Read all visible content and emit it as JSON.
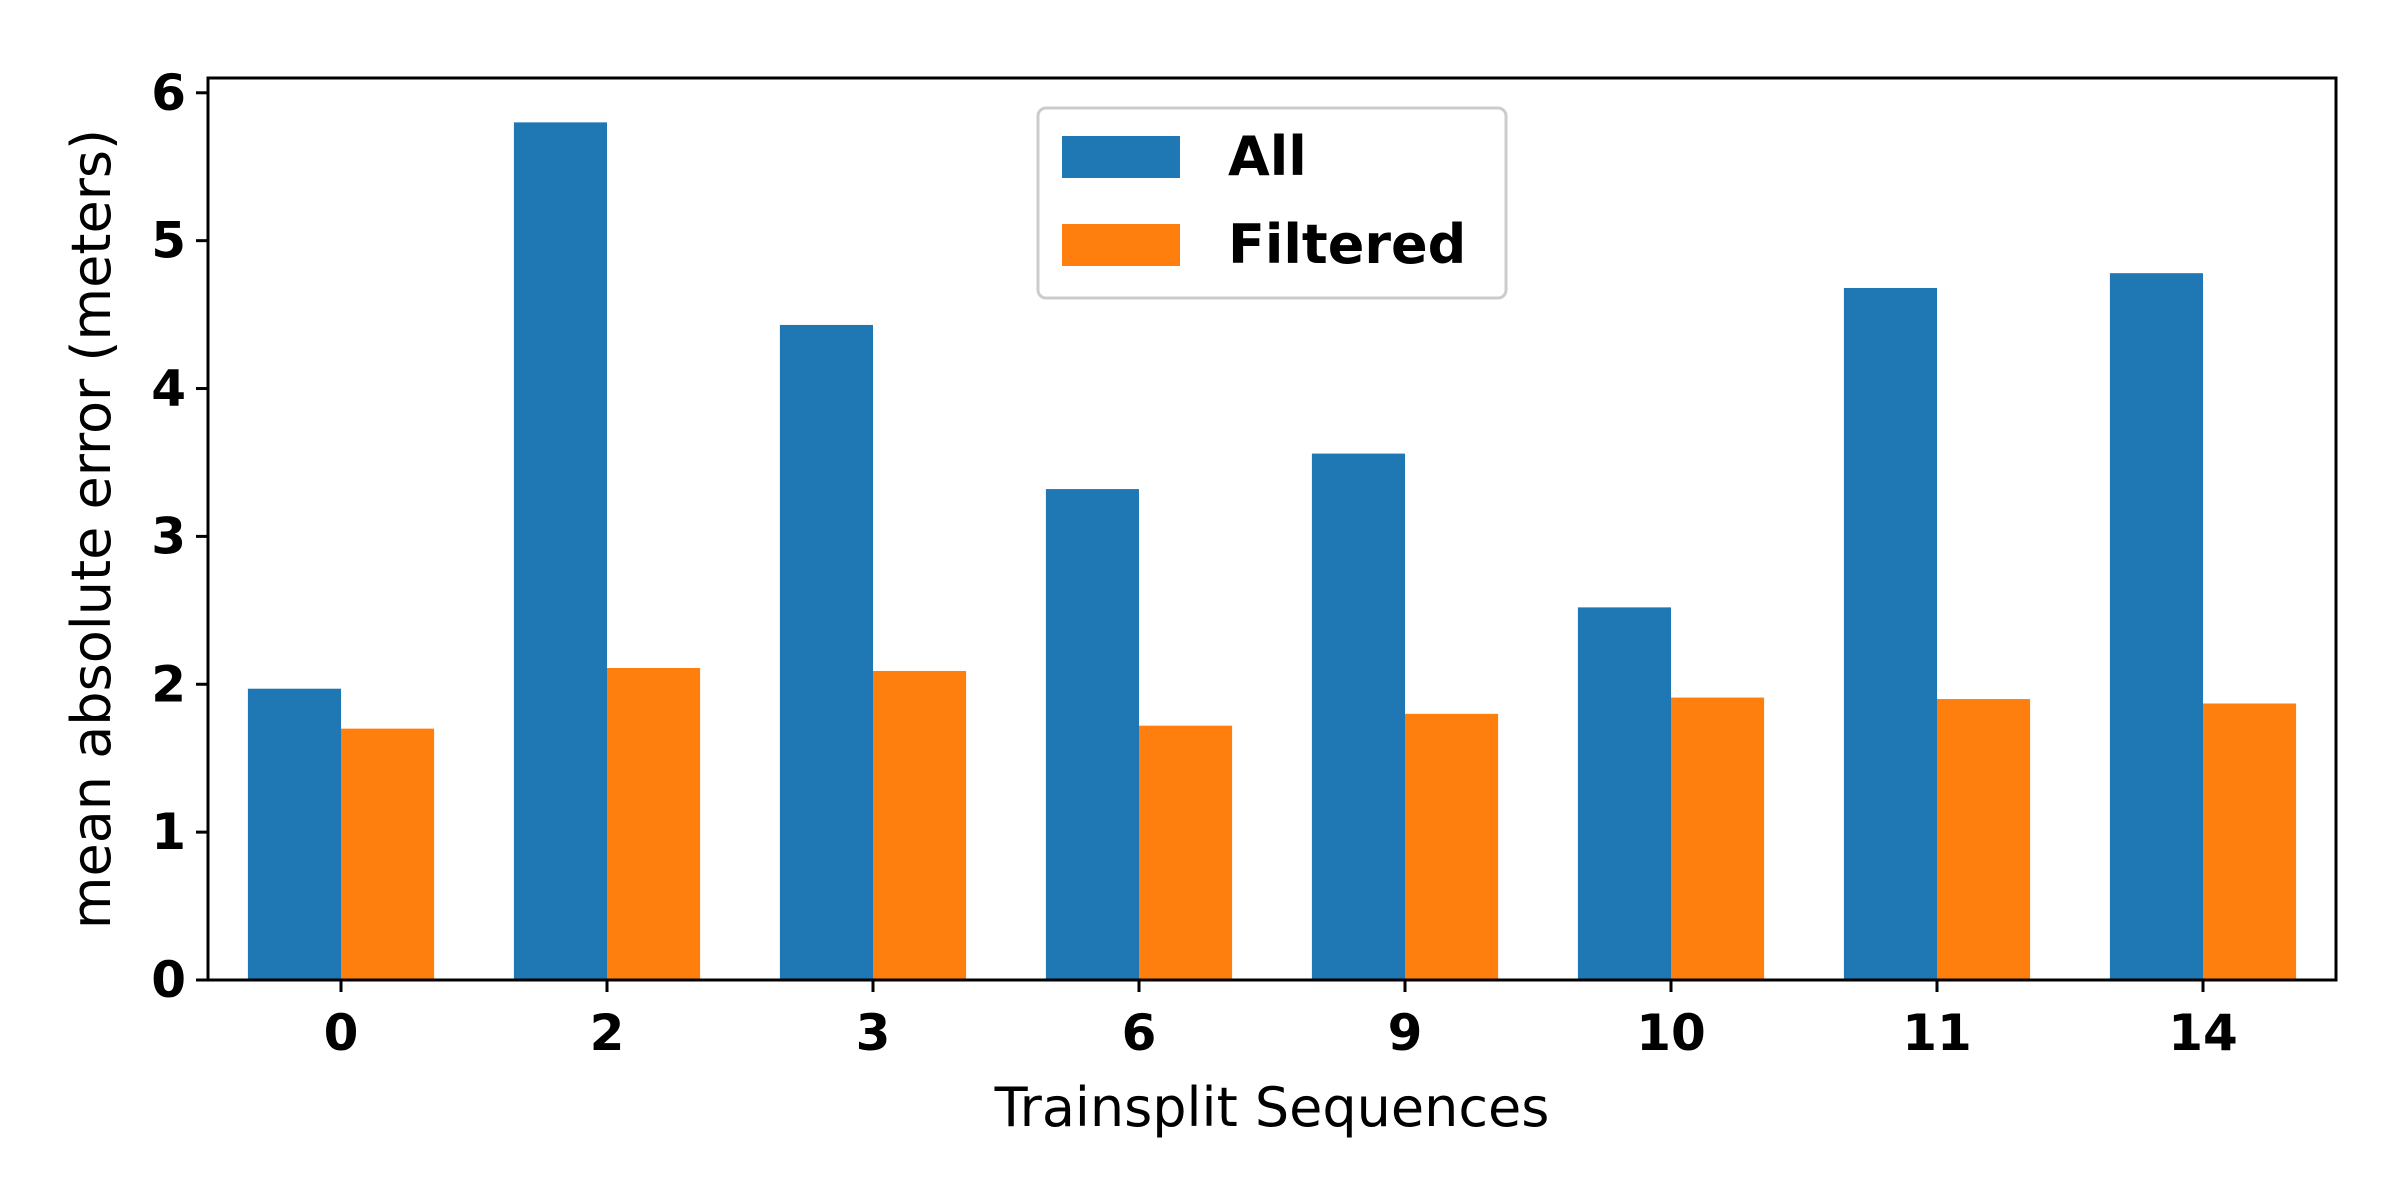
{
  "chart_data": {
    "type": "bar",
    "categories": [
      "0",
      "2",
      "3",
      "6",
      "9",
      "10",
      "11",
      "14"
    ],
    "series": [
      {
        "name": "All",
        "color": "#1f77b4",
        "values": [
          1.97,
          5.8,
          4.43,
          3.32,
          3.56,
          2.52,
          4.68,
          4.78
        ]
      },
      {
        "name": "Filtered",
        "color": "#ff7f0e",
        "values": [
          1.7,
          2.11,
          2.09,
          1.72,
          1.8,
          1.91,
          1.9,
          1.87
        ]
      }
    ],
    "xlabel": "Trainsplit Sequences",
    "ylabel": "mean absolute error (meters)",
    "ylim": [
      0,
      6.1
    ],
    "yticks": [
      0,
      1,
      2,
      3,
      4,
      5,
      6
    ],
    "legend_position": "upper-center",
    "grid": false
  }
}
